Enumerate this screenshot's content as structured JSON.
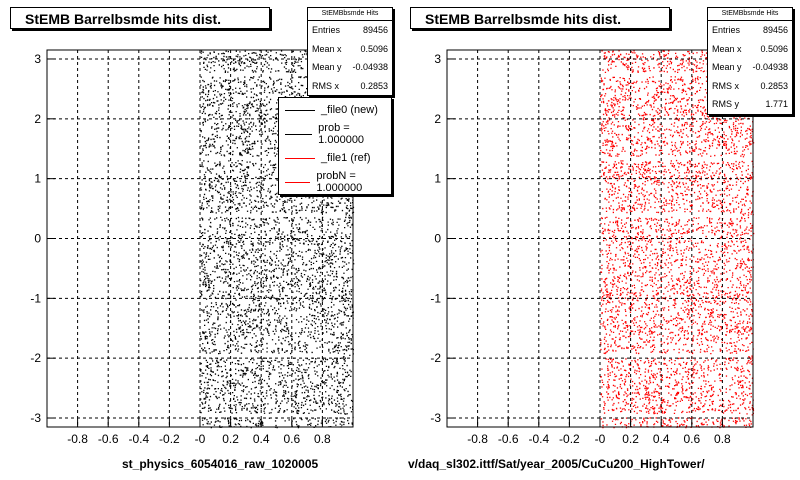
{
  "chart_data": [
    {
      "type": "scatter",
      "title": "StEMB Barrelbsmde hits dist.",
      "xlabel": "st_physics_6054016_raw_1020005",
      "ylabel": "",
      "xlim": [
        -1,
        1
      ],
      "ylim": [
        -3.15,
        3.15
      ],
      "x_ticks": [
        "-0.8",
        "-0.6",
        "-0.4",
        "-0.2",
        "-0",
        "0.2",
        "0.4",
        "0.6",
        "0.8"
      ],
      "y_ticks": [
        "-3",
        "-2",
        "-1",
        "0",
        "1",
        "2",
        "3"
      ],
      "grid": true,
      "color": "#000000",
      "points_region": {
        "x": [
          0,
          1
        ],
        "y": [
          -3.15,
          3.15
        ]
      },
      "gaps_y": [
        -2.95,
        -1.95,
        0.4,
        1.35,
        2.75
      ],
      "stats": {
        "header": "StEMBbsmde Hits",
        "rows": [
          {
            "label": "Entries",
            "value": "89456"
          },
          {
            "label": "Mean x",
            "value": "0.5096"
          },
          {
            "label": "Mean y",
            "value": "-0.04938"
          },
          {
            "label": "RMS x",
            "value": "0.2853"
          }
        ]
      },
      "legend": {
        "position": "top-right",
        "entries": [
          {
            "label": "_file0 (new)",
            "color": "#000000"
          },
          {
            "label": "prob = 1.000000",
            "color": "#000000"
          },
          {
            "label": "_file1 (ref)",
            "color": "#ff0000"
          },
          {
            "label": "probN = 1.000000",
            "color": "#ff0000"
          }
        ]
      }
    },
    {
      "type": "scatter",
      "title": "StEMB Barrelbsmde hits dist.",
      "xlabel": "v/daq_sl302.ittf/Sat/year_2005/CuCu200_HighTower/",
      "ylabel": "",
      "xlim": [
        -1,
        1
      ],
      "ylim": [
        -3.15,
        3.15
      ],
      "x_ticks": [
        "-0.8",
        "-0.6",
        "-0.4",
        "-0.2",
        "-0",
        "0.2",
        "0.4",
        "0.6",
        "0.8"
      ],
      "y_ticks": [
        "-3",
        "-2",
        "-1",
        "0",
        "1",
        "2",
        "3"
      ],
      "grid": true,
      "color": "#ff0000",
      "points_region": {
        "x": [
          0,
          1
        ],
        "y": [
          -3.15,
          3.15
        ]
      },
      "gaps_y": [
        -2.95,
        -1.95,
        0.4,
        1.35,
        2.75
      ],
      "stats": {
        "header": "StEMBbsmde Hits",
        "rows": [
          {
            "label": "Entries",
            "value": "89456"
          },
          {
            "label": "Mean x",
            "value": "0.5096"
          },
          {
            "label": "Mean y",
            "value": "-0.04938"
          },
          {
            "label": "RMS x",
            "value": "0.2853"
          },
          {
            "label": "RMS y",
            "value": "1.771"
          }
        ]
      }
    }
  ]
}
